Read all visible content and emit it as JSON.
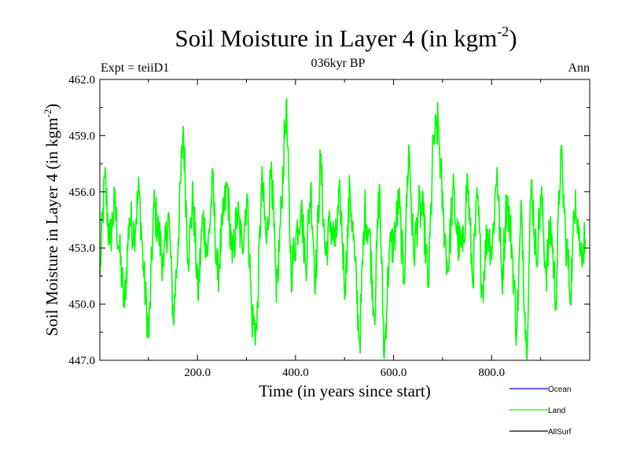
{
  "header": {
    "title_main": "Soil Moisture in Layer 4 (in kgm",
    "title_sup": "-2",
    "title_end": ")",
    "subtitle": "036kyr BP",
    "expt": "Expt = teiiD1",
    "season": "Ann"
  },
  "chart_data": {
    "type": "line",
    "xlabel": "Time (in years since start)",
    "ylabel_main": "Soil Moisture in Layer 4 (in kgm",
    "ylabel_sup": "-2",
    "ylabel_end": ")",
    "xlim": [
      1,
      1000
    ],
    "ylim": [
      447.0,
      462.0
    ],
    "x_ticks": [
      200,
      400,
      600,
      800
    ],
    "x_tick_labels": [
      "200.0",
      "400.0",
      "600.0",
      "800.0"
    ],
    "y_ticks": [
      447,
      450,
      453,
      456,
      459,
      462
    ],
    "y_tick_labels": [
      "447.0",
      "450.0",
      "453.0",
      "456.0",
      "459.0",
      "462.0"
    ],
    "legend": [
      {
        "name": "Ocean",
        "color": "#0000ff"
      },
      {
        "name": "Land",
        "color": "#00ff00"
      },
      {
        "name": "AllSurf",
        "color": "#000000"
      }
    ],
    "series": [
      {
        "name": "Land",
        "color": "#00ff00",
        "x_step": 10,
        "x_start": 1,
        "values": [
          451.5,
          456.8,
          453.2,
          455.4,
          452.8,
          449.8,
          454.6,
          453.9,
          456.1,
          451.4,
          448.2,
          455.3,
          453.8,
          452.0,
          454.9,
          449.2,
          453.5,
          459.5,
          452.4,
          455.8,
          450.4,
          454.7,
          452.7,
          456.5,
          451.3,
          454.2,
          456.4,
          452.2,
          454.9,
          453.1,
          455.9,
          449.3,
          448.6,
          456.6,
          453.2,
          457.6,
          450.1,
          455.2,
          460.8,
          451.6,
          453.6,
          455.3,
          452.1,
          456.3,
          451.2,
          457.8,
          452.6,
          454.4,
          453.1,
          455.7,
          450.9,
          456.2,
          452.3,
          447.9,
          455.1,
          453.7,
          449.3,
          456.4,
          447.1,
          452.8,
          453.4,
          455.6,
          451.2,
          458.5,
          452.5,
          455.1,
          454.7,
          450.9,
          458.6,
          459.6,
          454.8,
          451.7,
          456.1,
          453.4,
          452.8,
          456.8,
          451.2,
          455.7,
          450.6,
          454.0,
          452.9,
          457.3,
          451.1,
          455.8,
          453.2,
          448.5,
          455.2,
          447.2,
          456.6,
          452.4,
          455.8,
          451.6,
          454.3,
          450.1,
          458.2,
          453.6,
          450.6,
          456.1,
          452.8,
          453.5
        ]
      }
    ]
  }
}
